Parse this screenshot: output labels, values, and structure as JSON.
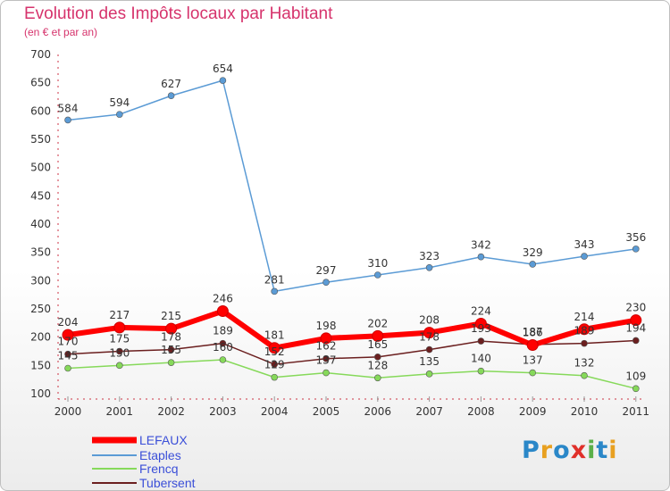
{
  "title": "Evolution des Impôts locaux par Habitant",
  "subtitle": "(en € et par an)",
  "logo_text": "Proxiti",
  "chart_data": {
    "type": "line",
    "title": "Evolution des Impôts locaux par Habitant",
    "subtitle": "(en € et par an)",
    "x": [
      "2000",
      "2001",
      "2002",
      "2003",
      "2004",
      "2005",
      "2006",
      "2007",
      "2008",
      "2009",
      "2010",
      "2011"
    ],
    "ylim": [
      100,
      700
    ],
    "yticks": [
      100,
      150,
      200,
      250,
      300,
      350,
      400,
      450,
      500,
      550,
      600,
      650,
      700
    ],
    "grid": false,
    "legend_position": "bottom-left",
    "series": [
      {
        "name": "Tubersent",
        "color": "#6b1f1f",
        "values": [
          170,
          175,
          178,
          189,
          152,
          162,
          165,
          178,
          193,
          187,
          189,
          194
        ]
      },
      {
        "name": "Frencq",
        "color": "#86d95a",
        "values": [
          145,
          150,
          155,
          160,
          129,
          137,
          128,
          135,
          140,
          137,
          132,
          109
        ]
      },
      {
        "name": "Etaples",
        "color": "#5b9bd5",
        "values": [
          584,
          594,
          627,
          654,
          281,
          297,
          310,
          323,
          342,
          329,
          343,
          356
        ]
      },
      {
        "name": "LEFAUX",
        "color": "#ff0000",
        "values": [
          204,
          217,
          215,
          246,
          181,
          198,
          202,
          208,
          224,
          186,
          214,
          230
        ]
      }
    ],
    "legend_order": [
      "LEFAUX",
      "Etaples",
      "Frencq",
      "Tubersent"
    ]
  }
}
